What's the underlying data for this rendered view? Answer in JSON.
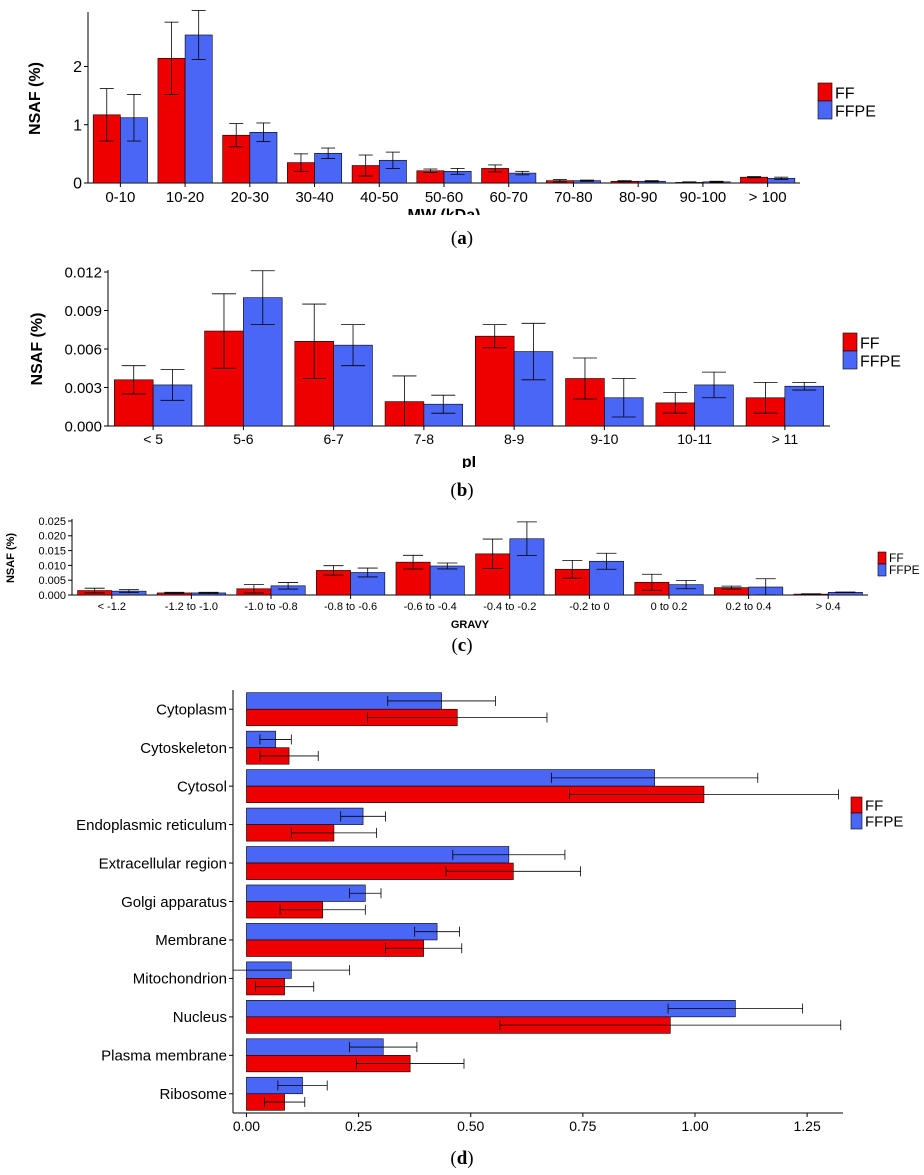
{
  "colors": {
    "ff": "#ee0000",
    "ffpe": "#4a66f5"
  },
  "captions": [
    {
      "open": "(",
      "letter": "a",
      "close": ")"
    },
    {
      "open": "(",
      "letter": "b",
      "close": ")"
    },
    {
      "open": "(",
      "letter": "c",
      "close": ")"
    },
    {
      "open": "(",
      "letter": "d",
      "close": ")"
    }
  ],
  "chart_data": [
    {
      "type": "bar",
      "xlabel": "MW (kDa)",
      "ylabel": "NSAF (%)",
      "ylim": [
        0,
        2.9
      ],
      "yticks": [
        0,
        1,
        2
      ],
      "ytick_labels": [
        "0",
        "1",
        "2"
      ],
      "categories": [
        "0-10",
        "10-20",
        "20-30",
        "30-40",
        "40-50",
        "50-60",
        "60-70",
        "70-80",
        "80-90",
        "90-100",
        "> 100"
      ],
      "series": [
        {
          "name": "FF",
          "values": [
            1.17,
            2.14,
            0.82,
            0.35,
            0.3,
            0.21,
            0.25,
            0.04,
            0.03,
            0.01,
            0.1
          ],
          "errors": [
            0.45,
            0.62,
            0.2,
            0.15,
            0.18,
            0.03,
            0.06,
            0.02,
            0.01,
            0.01,
            0.01
          ]
        },
        {
          "name": "FFPE",
          "values": [
            1.12,
            2.54,
            0.87,
            0.51,
            0.39,
            0.2,
            0.17,
            0.04,
            0.03,
            0.02,
            0.08
          ],
          "errors": [
            0.4,
            0.42,
            0.16,
            0.09,
            0.14,
            0.05,
            0.03,
            0.01,
            0.01,
            0.01,
            0.02
          ]
        }
      ],
      "legend": "right"
    },
    {
      "type": "bar",
      "xlabel": "pI",
      "ylabel": "NSAF (%)",
      "ylim": [
        0,
        0.012
      ],
      "yticks": [
        0,
        0.003,
        0.006,
        0.009,
        0.012
      ],
      "ytick_labels": [
        "0.000",
        "0.003",
        "0.006",
        "0.009",
        "0.012"
      ],
      "categories": [
        "< 5",
        "5-6",
        "6-7",
        "7-8",
        "8-9",
        "9-10",
        "10-11",
        "> 11"
      ],
      "series": [
        {
          "name": "FF",
          "values": [
            0.0036,
            0.0074,
            0.0066,
            0.0019,
            0.007,
            0.0037,
            0.0018,
            0.0022
          ],
          "errors": [
            0.0011,
            0.0029,
            0.0029,
            0.002,
            0.0009,
            0.0016,
            0.0008,
            0.0012
          ]
        },
        {
          "name": "FFPE",
          "values": [
            0.0032,
            0.01,
            0.0063,
            0.0017,
            0.0058,
            0.0022,
            0.0032,
            0.0031
          ],
          "errors": [
            0.0012,
            0.0021,
            0.0016,
            0.0007,
            0.0022,
            0.0015,
            0.001,
            0.0003
          ]
        }
      ],
      "legend": "right"
    },
    {
      "type": "bar",
      "xlabel": "GRAVY",
      "ylabel": "NSAF (%)",
      "ylim": [
        0,
        0.025
      ],
      "yticks": [
        0,
        0.005,
        0.01,
        0.015,
        0.02,
        0.025
      ],
      "ytick_labels": [
        "0.000",
        "0.005",
        "0.010",
        "0.015",
        "0.020",
        "0.025"
      ],
      "categories": [
        "< -1.2",
        "-1.2 to -1.0",
        "-1.0 to -0.8",
        "-0.8 to -0.6",
        "-0.6 to -0.4",
        "-0.4 to -0.2",
        "-0.2 to 0",
        "0 to 0.2",
        "0.2 to 0.4",
        "> 0.4"
      ],
      "series": [
        {
          "name": "FF",
          "values": [
            0.0015,
            0.0007,
            0.0021,
            0.0083,
            0.0111,
            0.0139,
            0.0087,
            0.0043,
            0.0025,
            0.0003
          ],
          "errors": [
            0.0008,
            0.0002,
            0.0014,
            0.0016,
            0.0023,
            0.005,
            0.003,
            0.0027,
            0.0005,
            0.0001
          ]
        },
        {
          "name": "FFPE",
          "values": [
            0.0013,
            0.0007,
            0.0031,
            0.0076,
            0.0098,
            0.019,
            0.0114,
            0.0035,
            0.0027,
            0.0009
          ],
          "errors": [
            0.0005,
            0.0002,
            0.0011,
            0.0015,
            0.001,
            0.0057,
            0.0027,
            0.0014,
            0.0028,
            0.0001
          ]
        }
      ],
      "legend": "right"
    },
    {
      "type": "bar",
      "orientation": "horizontal",
      "xlabel": "NSAF (%)",
      "ylabel": "",
      "xlim": [
        -0.03,
        1.33
      ],
      "xticks": [
        0,
        0.25,
        0.5,
        0.75,
        1.0,
        1.25
      ],
      "xtick_labels": [
        "0.00",
        "0.25",
        "0.50",
        "0.75",
        "1.00",
        "1.25"
      ],
      "categories": [
        "Cytoplasm",
        "Cytoskeleton",
        "Cytosol",
        "Endoplasmic reticulum",
        "Extracellular region",
        "Golgi apparatus",
        "Membrane",
        "Mitochondrion",
        "Nucleus",
        "Plasma membrane",
        "Ribosome"
      ],
      "series": [
        {
          "name": "FFPE",
          "values": [
            0.435,
            0.065,
            0.91,
            0.26,
            0.585,
            0.265,
            0.425,
            0.1,
            1.09,
            0.305,
            0.125
          ],
          "errors": [
            0.12,
            0.035,
            0.23,
            0.05,
            0.125,
            0.035,
            0.05,
            0.13,
            0.15,
            0.075,
            0.055
          ]
        },
        {
          "name": "FF",
          "values": [
            0.47,
            0.095,
            1.02,
            0.195,
            0.595,
            0.17,
            0.395,
            0.085,
            0.945,
            0.365,
            0.085
          ],
          "errors": [
            0.2,
            0.065,
            0.3,
            0.095,
            0.15,
            0.095,
            0.085,
            0.065,
            0.38,
            0.12,
            0.045
          ]
        }
      ],
      "legend": "right"
    }
  ]
}
